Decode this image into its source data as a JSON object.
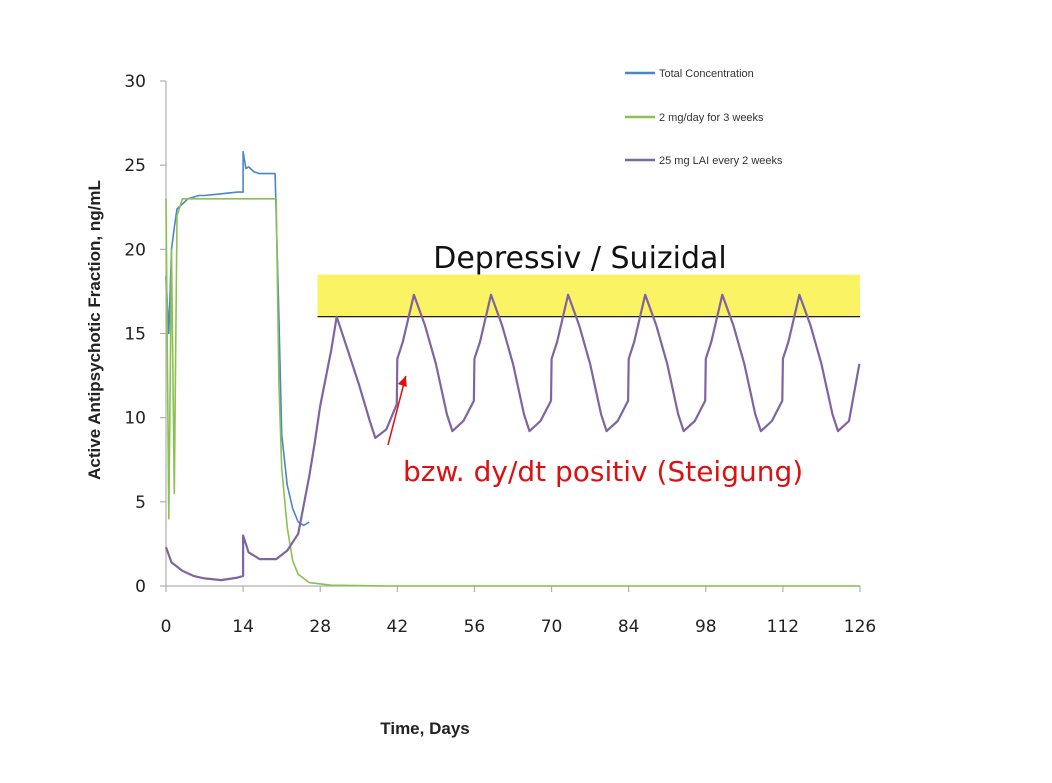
{
  "chart_data": {
    "type": "line",
    "title": "",
    "xlabel": "Time, Days",
    "ylabel": "Active Antipsychotic Fraction, ng/mL",
    "xlim": [
      0,
      126
    ],
    "ylim": [
      0,
      30
    ],
    "xticks": [
      0,
      14,
      28,
      42,
      56,
      70,
      84,
      98,
      112,
      126
    ],
    "yticks": [
      0,
      5,
      10,
      15,
      20,
      25,
      30
    ],
    "grid": false,
    "legend_position": "top-right",
    "series": [
      {
        "name": "Total Concentration",
        "color": "#4a86c8",
        "x": [
          0,
          0.5,
          1,
          1.5,
          2,
          3,
          4,
          5,
          6,
          7,
          10,
          13,
          13.99,
          14,
          14.5,
          15,
          16,
          17,
          18,
          19,
          19.8,
          20.5,
          21,
          22,
          23,
          24,
          25,
          26
        ],
        "y": [
          18.4,
          15,
          20,
          21.3,
          22.4,
          22.7,
          23,
          23.1,
          23.2,
          23.2,
          23.3,
          23.4,
          23.4,
          25.8,
          24.8,
          24.9,
          24.6,
          24.5,
          24.5,
          24.5,
          24.5,
          16,
          9,
          6,
          4.6,
          3.8,
          3.6,
          3.8
        ]
      },
      {
        "name": "2 mg/day for 3 weeks",
        "color": "#8cc152",
        "x": [
          0,
          0.5,
          1,
          1.5,
          2,
          3,
          4,
          5,
          6,
          7,
          8,
          9,
          10,
          11,
          12,
          13,
          14,
          15,
          16,
          17,
          18,
          19,
          20,
          20.5,
          21,
          22,
          23,
          24,
          26,
          30,
          40,
          60,
          80,
          100,
          126
        ],
        "y": [
          23,
          4,
          20,
          5.5,
          22,
          23,
          23,
          23,
          23,
          23,
          23,
          23,
          23,
          23,
          23,
          23,
          23,
          23,
          23,
          23,
          23,
          23,
          23,
          12,
          7,
          3.5,
          1.5,
          0.7,
          0.2,
          0.05,
          0,
          0,
          0,
          0,
          0
        ]
      },
      {
        "name": "25 mg LAI every 2 weeks",
        "color": "#8064a2",
        "x": [
          0,
          1,
          3,
          5,
          7,
          10,
          13,
          13.99,
          14,
          15,
          17,
          20,
          22,
          24,
          26,
          27,
          28,
          30,
          31,
          33,
          35,
          37,
          38,
          40,
          41.9,
          42,
          43,
          45,
          47,
          49,
          51,
          52,
          54,
          55.9,
          56,
          57,
          59,
          61,
          63,
          65,
          66,
          68,
          69.9,
          70,
          71,
          73,
          75,
          77,
          79,
          80,
          82,
          83.9,
          84,
          85,
          87,
          89,
          91,
          93,
          94,
          96,
          97.9,
          98,
          99,
          101,
          103,
          105,
          107,
          108,
          110,
          111.9,
          112,
          113,
          115,
          117,
          119,
          121,
          122,
          124,
          125.9
        ],
        "y": [
          2.3,
          1.4,
          0.9,
          0.6,
          0.45,
          0.35,
          0.5,
          0.6,
          3,
          2,
          1.6,
          1.6,
          2.1,
          3.1,
          6.5,
          8.5,
          10.7,
          14,
          16,
          14,
          12,
          9.8,
          8.8,
          9.3,
          10.8,
          13.5,
          14.5,
          17.3,
          15.5,
          13.2,
          10.2,
          9.2,
          9.8,
          11,
          13.5,
          14.5,
          17.3,
          15.5,
          13.2,
          10.2,
          9.2,
          9.8,
          11,
          13.5,
          14.5,
          17.3,
          15.5,
          13.2,
          10.2,
          9.2,
          9.8,
          11,
          13.5,
          14.5,
          17.3,
          15.5,
          13.2,
          10.2,
          9.2,
          9.8,
          11,
          13.5,
          14.5,
          17.3,
          15.5,
          13.2,
          10.2,
          9.2,
          9.8,
          11,
          13.5,
          14.5,
          17.3,
          15.5,
          13.2,
          10.2,
          9.2,
          9.8,
          13.2
        ]
      }
    ],
    "highlight_band": {
      "label": "Depressiv / Suizidal",
      "x_range": [
        27.5,
        126
      ],
      "y_range": [
        16,
        18.5
      ],
      "threshold_y": 16,
      "fill_color": "#f9f24a",
      "line_color": "#000000"
    },
    "annotation": {
      "text": "bzw. dy/dt positiv (Steigung)",
      "color": "#dd1111",
      "points_to": [
        43,
        12
      ]
    }
  }
}
